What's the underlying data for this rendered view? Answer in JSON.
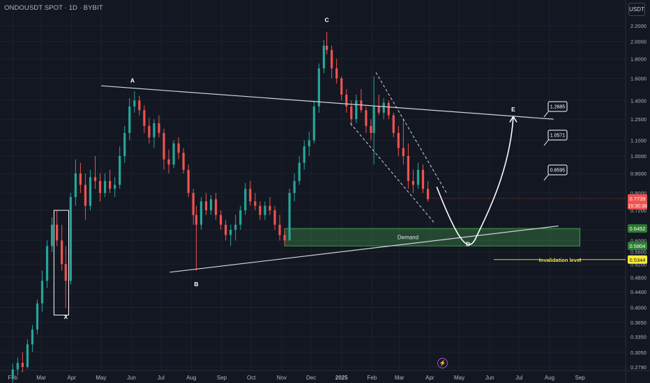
{
  "header": {
    "symbol": "ONDOUSDT SPOT · 1D · BYBIT",
    "currency": "USDT"
  },
  "chart_data": {
    "type": "candlestick",
    "y_scale": "log",
    "grid": true,
    "y_ticks": [
      "2.2000",
      "2.0000",
      "1.8000",
      "1.6000",
      "1.4000",
      "1.2500",
      "1.1000",
      "1.0000",
      "0.9000",
      "0.8000",
      "0.7200",
      "0.6400",
      "0.6000",
      "0.5600",
      "0.5200",
      "0.4800",
      "0.4400",
      "0.4000",
      "0.3650",
      "0.3350",
      "0.3050",
      "0.2790"
    ],
    "x_ticks": [
      "Feb",
      "Mar",
      "Apr",
      "May",
      "Jun",
      "Jul",
      "Aug",
      "Sep",
      "Oct",
      "Nov",
      "Dec",
      "2025",
      "Feb",
      "Mar",
      "Apr",
      "May",
      "Jun",
      "Jul",
      "Aug",
      "Sep"
    ],
    "last_price": {
      "value": "0.7739",
      "countdown": "15:30:38"
    },
    "price_tags": [
      {
        "value": "0.6452",
        "color": "#2e7d32"
      },
      {
        "value": "0.5804",
        "color": "#2e7d32"
      },
      {
        "value": "0.5344",
        "color": "#ffeb3b"
      }
    ],
    "candles": [
      [
        "2024-02-01",
        0.262,
        0.285,
        0.246,
        0.275
      ],
      [
        "2024-02-06",
        0.275,
        0.295,
        0.265,
        0.286
      ],
      [
        "2024-02-11",
        0.286,
        0.305,
        0.27,
        0.279
      ],
      [
        "2024-02-16",
        0.279,
        0.33,
        0.276,
        0.32
      ],
      [
        "2024-02-21",
        0.32,
        0.36,
        0.305,
        0.35
      ],
      [
        "2024-02-26",
        0.35,
        0.42,
        0.34,
        0.41
      ],
      [
        "2024-03-02",
        0.41,
        0.5,
        0.39,
        0.47
      ],
      [
        "2024-03-07",
        0.47,
        0.6,
        0.45,
        0.58
      ],
      [
        "2024-03-12",
        0.58,
        0.69,
        0.56,
        0.66
      ],
      [
        "2024-03-17",
        0.66,
        0.72,
        0.58,
        0.6
      ],
      [
        "2024-03-22",
        0.6,
        0.66,
        0.5,
        0.52
      ],
      [
        "2024-03-26",
        0.52,
        0.58,
        0.398,
        0.47
      ],
      [
        "2024-03-31",
        0.47,
        0.8,
        0.46,
        0.78
      ],
      [
        "2024-04-05",
        0.78,
        0.98,
        0.74,
        0.9
      ],
      [
        "2024-04-10",
        0.9,
        0.96,
        0.8,
        0.84
      ],
      [
        "2024-04-15",
        0.84,
        0.9,
        0.68,
        0.74
      ],
      [
        "2024-04-20",
        0.74,
        0.92,
        0.72,
        0.88
      ],
      [
        "2024-04-25",
        0.88,
        1.0,
        0.82,
        0.86
      ],
      [
        "2024-04-30",
        0.86,
        0.9,
        0.76,
        0.8
      ],
      [
        "2024-05-05",
        0.8,
        0.9,
        0.78,
        0.86
      ],
      [
        "2024-05-10",
        0.86,
        0.92,
        0.8,
        0.82
      ],
      [
        "2024-05-15",
        0.82,
        0.88,
        0.78,
        0.84
      ],
      [
        "2024-05-20",
        0.84,
        1.06,
        0.82,
        1.0
      ],
      [
        "2024-05-25",
        1.0,
        1.2,
        0.96,
        1.15
      ],
      [
        "2024-05-30",
        1.15,
        1.42,
        1.1,
        1.35
      ],
      [
        "2024-06-04",
        1.35,
        1.48,
        1.3,
        1.4
      ],
      [
        "2024-06-09",
        1.4,
        1.44,
        1.28,
        1.32
      ],
      [
        "2024-06-14",
        1.32,
        1.36,
        1.15,
        1.2
      ],
      [
        "2024-06-19",
        1.2,
        1.26,
        1.08,
        1.12
      ],
      [
        "2024-06-24",
        1.12,
        1.25,
        1.05,
        1.22
      ],
      [
        "2024-06-29",
        1.22,
        1.28,
        1.12,
        1.15
      ],
      [
        "2024-07-04",
        1.15,
        1.18,
        0.92,
        0.98
      ],
      [
        "2024-07-09",
        0.98,
        1.04,
        0.9,
        0.95
      ],
      [
        "2024-07-14",
        0.95,
        1.1,
        0.93,
        1.08
      ],
      [
        "2024-07-19",
        1.08,
        1.12,
        0.98,
        1.02
      ],
      [
        "2024-07-24",
        1.02,
        1.05,
        0.9,
        0.92
      ],
      [
        "2024-07-29",
        0.92,
        0.95,
        0.78,
        0.8
      ],
      [
        "2024-08-03",
        0.8,
        0.82,
        0.66,
        0.7
      ],
      [
        "2024-08-06",
        0.7,
        0.74,
        0.5,
        0.66
      ],
      [
        "2024-08-11",
        0.66,
        0.78,
        0.64,
        0.76
      ],
      [
        "2024-08-16",
        0.76,
        0.8,
        0.7,
        0.72
      ],
      [
        "2024-08-21",
        0.72,
        0.79,
        0.7,
        0.77
      ],
      [
        "2024-08-26",
        0.77,
        0.8,
        0.68,
        0.7
      ],
      [
        "2024-08-31",
        0.7,
        0.72,
        0.64,
        0.66
      ],
      [
        "2024-09-05",
        0.66,
        0.68,
        0.6,
        0.62
      ],
      [
        "2024-09-10",
        0.62,
        0.66,
        0.58,
        0.64
      ],
      [
        "2024-09-15",
        0.64,
        0.7,
        0.6,
        0.66
      ],
      [
        "2024-09-20",
        0.66,
        0.74,
        0.64,
        0.72
      ],
      [
        "2024-09-25",
        0.72,
        0.85,
        0.7,
        0.82
      ],
      [
        "2024-09-30",
        0.82,
        0.86,
        0.74,
        0.76
      ],
      [
        "2024-10-05",
        0.76,
        0.8,
        0.72,
        0.74
      ],
      [
        "2024-10-10",
        0.74,
        0.76,
        0.68,
        0.7
      ],
      [
        "2024-10-15",
        0.7,
        0.76,
        0.68,
        0.74
      ],
      [
        "2024-10-20",
        0.74,
        0.78,
        0.7,
        0.72
      ],
      [
        "2024-10-25",
        0.72,
        0.74,
        0.64,
        0.66
      ],
      [
        "2024-10-30",
        0.66,
        0.7,
        0.6,
        0.62
      ],
      [
        "2024-11-04",
        0.62,
        0.64,
        0.58,
        0.6
      ],
      [
        "2024-11-09",
        0.6,
        0.82,
        0.6,
        0.8
      ],
      [
        "2024-11-14",
        0.8,
        0.9,
        0.76,
        0.86
      ],
      [
        "2024-11-19",
        0.86,
        1.0,
        0.84,
        0.96
      ],
      [
        "2024-11-24",
        0.96,
        1.1,
        0.92,
        1.06
      ],
      [
        "2024-11-29",
        1.06,
        1.16,
        1.0,
        1.1
      ],
      [
        "2024-12-04",
        1.1,
        1.4,
        1.08,
        1.35
      ],
      [
        "2024-12-09",
        1.35,
        1.75,
        1.3,
        1.7
      ],
      [
        "2024-12-14",
        1.7,
        2.02,
        1.65,
        1.95
      ],
      [
        "2024-12-17",
        1.95,
        2.12,
        1.85,
        1.9
      ],
      [
        "2024-12-22",
        1.9,
        1.95,
        1.6,
        1.7
      ],
      [
        "2024-12-27",
        1.7,
        1.8,
        1.55,
        1.6
      ],
      [
        "2025-01-01",
        1.6,
        1.62,
        1.4,
        1.45
      ],
      [
        "2025-01-06",
        1.45,
        1.5,
        1.3,
        1.35
      ],
      [
        "2025-01-11",
        1.35,
        1.4,
        1.2,
        1.25
      ],
      [
        "2025-01-16",
        1.25,
        1.45,
        1.22,
        1.4
      ],
      [
        "2025-01-21",
        1.4,
        1.5,
        1.3,
        1.32
      ],
      [
        "2025-01-26",
        1.32,
        1.35,
        1.15,
        1.2
      ],
      [
        "2025-01-31",
        1.2,
        1.25,
        1.1,
        1.15
      ],
      [
        "2025-02-03",
        1.15,
        1.62,
        0.95,
        1.35
      ],
      [
        "2025-02-08",
        1.35,
        1.45,
        1.28,
        1.3
      ],
      [
        "2025-02-13",
        1.3,
        1.42,
        1.25,
        1.38
      ],
      [
        "2025-02-18",
        1.38,
        1.4,
        1.25,
        1.28
      ],
      [
        "2025-02-23",
        1.28,
        1.3,
        1.12,
        1.15
      ],
      [
        "2025-02-28",
        1.15,
        1.2,
        1.0,
        1.05
      ],
      [
        "2025-03-05",
        1.05,
        1.25,
        0.95,
        1.0
      ],
      [
        "2025-03-10",
        1.0,
        1.08,
        0.82,
        0.86
      ],
      [
        "2025-03-15",
        0.86,
        0.92,
        0.8,
        0.84
      ],
      [
        "2025-03-20",
        0.84,
        0.96,
        0.82,
        0.92
      ],
      [
        "2025-03-25",
        0.92,
        0.95,
        0.8,
        0.82
      ],
      [
        "2025-03-30",
        0.82,
        0.86,
        0.76,
        0.77
      ]
    ],
    "labels": [
      {
        "text": "A",
        "date": "2024-06-02",
        "price": 1.56
      },
      {
        "text": "B",
        "date": "2024-08-06",
        "price": 0.455
      },
      {
        "text": "C",
        "date": "2024-12-17",
        "price": 2.25
      },
      {
        "text": "D",
        "date": "2025-05-10",
        "price": 0.58
      },
      {
        "text": "E",
        "date": "2025-06-25",
        "price": 1.31
      },
      {
        "text": "X",
        "date": "2024-03-26",
        "price": 0.373
      }
    ],
    "zone": {
      "label": "Demand",
      "from": "2024-11-04",
      "to": "2025-09-01",
      "low": 0.5804,
      "high": 0.6452
    },
    "invalidation": {
      "label": "invalidation level",
      "price": 0.5344
    },
    "targets": [
      {
        "value": "1.2685"
      },
      {
        "value": "1.0571"
      },
      {
        "value": "0.8595"
      }
    ]
  }
}
